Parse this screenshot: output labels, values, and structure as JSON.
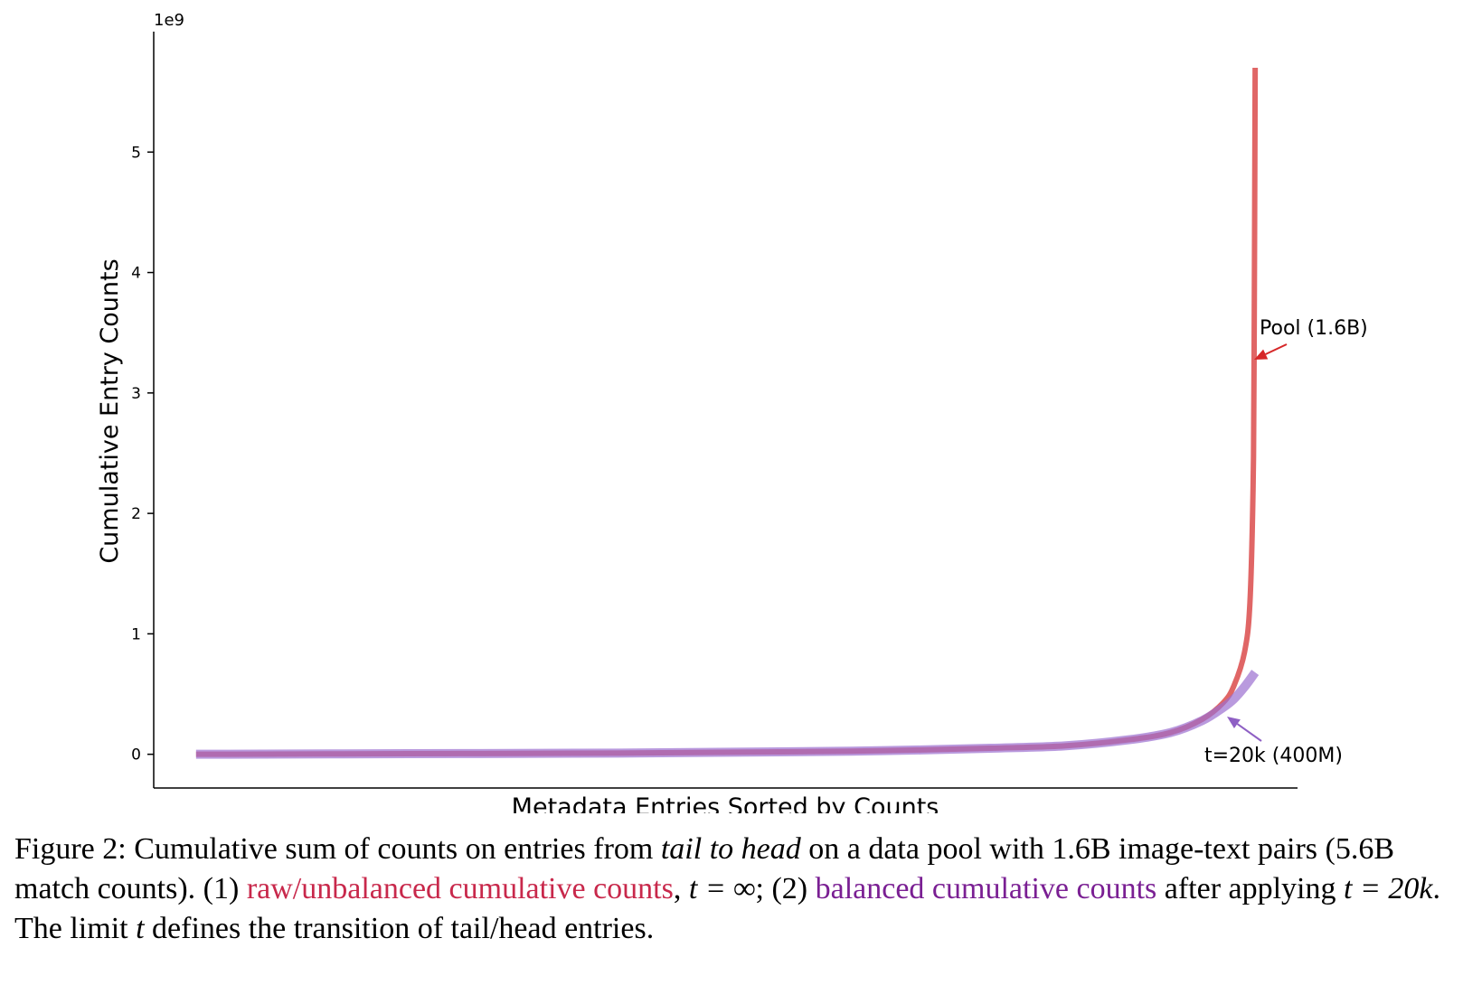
{
  "chart_data": {
    "type": "line",
    "xlabel": "Metadata Entries Sorted by Counts",
    "ylabel": "Cumulative Entry Counts",
    "y_scale_label": "1e9",
    "ylim": [
      -0.28,
      6.0
    ],
    "xlim": [
      -0.04,
      1.04
    ],
    "yticks": [
      0,
      1,
      2,
      3,
      4,
      5
    ],
    "grid": false,
    "series": [
      {
        "name": "Pool (1.6B)",
        "color": "#e06666",
        "x": [
          0,
          0.2,
          0.4,
          0.55,
          0.65,
          0.75,
          0.82,
          0.88,
          0.92,
          0.95,
          0.97,
          0.98,
          0.99,
          0.995,
          0.998,
          0.999,
          1.0
        ],
        "y": [
          0.0,
          0.005,
          0.01,
          0.02,
          0.03,
          0.05,
          0.07,
          0.12,
          0.18,
          0.29,
          0.43,
          0.57,
          0.85,
          1.25,
          2.2,
          3.3,
          5.7
        ]
      },
      {
        "name": "t=20k (400M)",
        "color": "#9b6fd0",
        "x": [
          0,
          0.2,
          0.4,
          0.55,
          0.65,
          0.75,
          0.82,
          0.88,
          0.92,
          0.95,
          0.97,
          0.98,
          0.99,
          1.0
        ],
        "y": [
          0.0,
          0.005,
          0.01,
          0.02,
          0.03,
          0.05,
          0.07,
          0.12,
          0.18,
          0.28,
          0.39,
          0.46,
          0.56,
          0.68
        ]
      }
    ],
    "annotations": [
      {
        "text": "Pool (1.6B)",
        "color": "#d62728"
      },
      {
        "text": "t=20k (400M)",
        "color": "#8e5fc4"
      }
    ]
  },
  "caption": {
    "prefix": "Figure 2: Cumulative sum of counts on entries from ",
    "italic1": "tail to head",
    "mid1": " on a data pool with 1.6B image-text pairs (5.6B match counts). (1) ",
    "red_text": "raw/unbalanced cumulative counts",
    "mid2": ", ",
    "math1": "t = ∞",
    "mid3": "; (2) ",
    "purple_text": "balanced cumulative counts",
    "mid4": " after applying ",
    "math2": "t = 20k",
    "mid5": ". The limit ",
    "math3": "t",
    "suffix": " defines the transition of tail/head entries."
  }
}
